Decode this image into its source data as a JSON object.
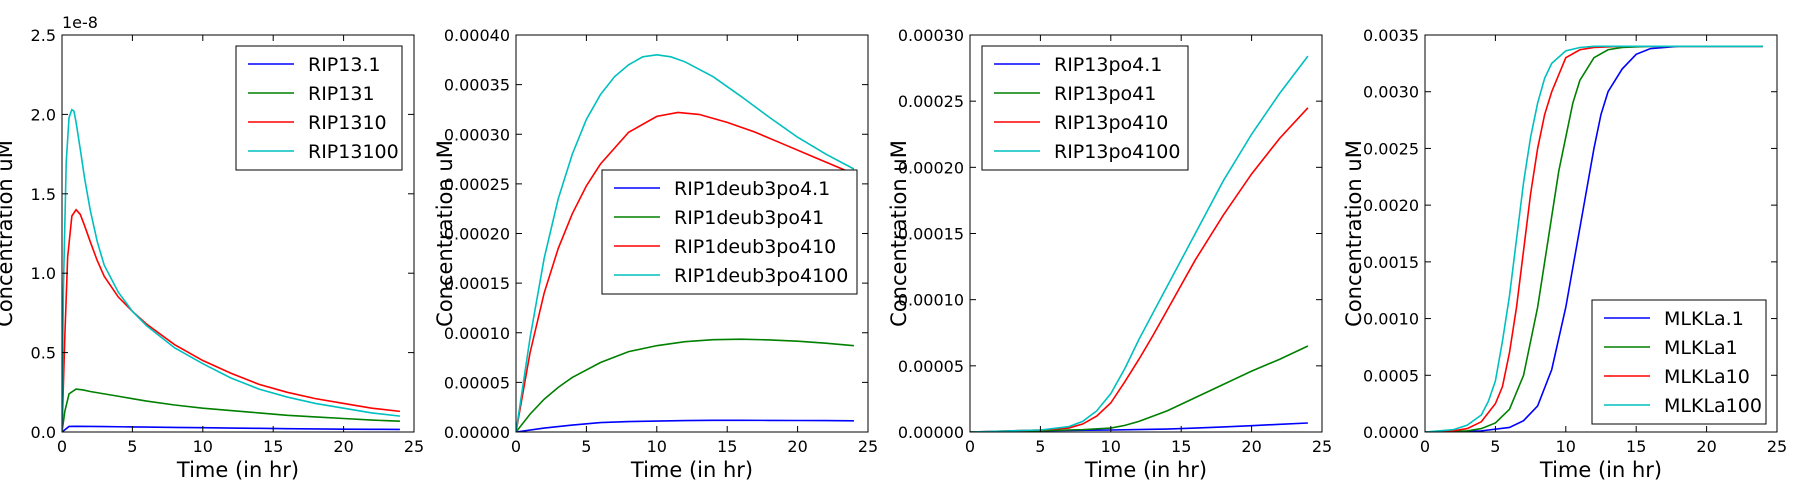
{
  "chart_data": [
    {
      "type": "line",
      "xlabel": "Time (in hr)",
      "ylabel": "Concentration uM",
      "xlim": [
        0,
        25
      ],
      "ylim": [
        0,
        2.5
      ],
      "xticks": [
        "0",
        "5",
        "10",
        "15",
        "20",
        "25"
      ],
      "yticks": [
        "0.0",
        "0.5",
        "1.0",
        "1.5",
        "2.0",
        "2.5"
      ],
      "y_offset_text": "1e-8",
      "legend_position": "upper right",
      "series": [
        {
          "name": "RIP13.1",
          "color": "#0000ff",
          "x": [
            0,
            0.5,
            1,
            2,
            3,
            4,
            5,
            6,
            8,
            10,
            12,
            14,
            16,
            18,
            20,
            22,
            24
          ],
          "y": [
            0,
            0.035,
            0.036,
            0.035,
            0.034,
            0.033,
            0.032,
            0.031,
            0.029,
            0.027,
            0.025,
            0.023,
            0.021,
            0.019,
            0.018,
            0.017,
            0.016
          ]
        },
        {
          "name": "RIP131",
          "color": "#008000",
          "x": [
            0,
            0.2,
            0.5,
            1,
            1.5,
            2,
            3,
            4,
            5,
            6,
            8,
            10,
            12,
            14,
            16,
            18,
            20,
            22,
            24
          ],
          "y": [
            0,
            0.13,
            0.24,
            0.27,
            0.265,
            0.255,
            0.24,
            0.225,
            0.21,
            0.195,
            0.17,
            0.15,
            0.135,
            0.12,
            0.105,
            0.095,
            0.085,
            0.075,
            0.068
          ]
        },
        {
          "name": "RIP1310",
          "color": "#ff0000",
          "x": [
            0,
            0.2,
            0.4,
            0.7,
            1,
            1.3,
            1.6,
            2,
            2.5,
            3,
            4,
            5,
            6,
            8,
            10,
            12,
            14,
            16,
            18,
            20,
            22,
            24
          ],
          "y": [
            0,
            0.6,
            1.1,
            1.36,
            1.4,
            1.37,
            1.3,
            1.2,
            1.08,
            0.98,
            0.85,
            0.76,
            0.68,
            0.55,
            0.45,
            0.37,
            0.3,
            0.25,
            0.21,
            0.18,
            0.15,
            0.13
          ]
        },
        {
          "name": "RIP13100",
          "color": "#00bfbf",
          "x": [
            0,
            0.1,
            0.3,
            0.5,
            0.7,
            0.85,
            1,
            1.3,
            1.6,
            2,
            2.5,
            3,
            4,
            5,
            6,
            8,
            10,
            12,
            14,
            16,
            18,
            20,
            22,
            24
          ],
          "y": [
            0,
            0.9,
            1.7,
            1.98,
            2.03,
            2.02,
            1.95,
            1.78,
            1.6,
            1.4,
            1.2,
            1.05,
            0.88,
            0.76,
            0.67,
            0.53,
            0.43,
            0.34,
            0.27,
            0.22,
            0.18,
            0.15,
            0.12,
            0.1
          ]
        }
      ]
    },
    {
      "type": "line",
      "xlabel": "Time (in hr)",
      "ylabel": "Concentration uM",
      "xlim": [
        0,
        25
      ],
      "ylim": [
        0,
        0.0004
      ],
      "xticks": [
        "0",
        "5",
        "10",
        "15",
        "20",
        "25"
      ],
      "yticks": [
        "0.00000",
        "0.00005",
        "0.00010",
        "0.00015",
        "0.00020",
        "0.00025",
        "0.00030",
        "0.00035",
        "0.00040"
      ],
      "legend_position": "center right",
      "series": [
        {
          "name": "RIP1deub3po4.1",
          "color": "#0000ff",
          "x": [
            0,
            2,
            4,
            6,
            8,
            10,
            12,
            14,
            16,
            18,
            20,
            22,
            24
          ],
          "y": [
            0,
            4e-06,
            7e-06,
            9.5e-06,
            1.05e-05,
            1.1e-05,
            1.15e-05,
            1.18e-05,
            1.18e-05,
            1.17e-05,
            1.16e-05,
            1.15e-05,
            1.13e-05
          ]
        },
        {
          "name": "RIP1deub3po41",
          "color": "#008000",
          "x": [
            0,
            1,
            2,
            3,
            4,
            6,
            8,
            10,
            12,
            14,
            16,
            18,
            20,
            22,
            24
          ],
          "y": [
            0,
            1.8e-05,
            3.3e-05,
            4.5e-05,
            5.5e-05,
            7e-05,
            8.1e-05,
            8.7e-05,
            9.1e-05,
            9.3e-05,
            9.35e-05,
            9.28e-05,
            9.15e-05,
            8.95e-05,
            8.7e-05
          ]
        },
        {
          "name": "RIP1deub3po410",
          "color": "#ff0000",
          "x": [
            0,
            1,
            2,
            3,
            4,
            5,
            6,
            8,
            10,
            11.5,
            13,
            15,
            17,
            19,
            21,
            23,
            24
          ],
          "y": [
            0,
            8e-05,
            0.00014,
            0.000185,
            0.00022,
            0.000248,
            0.00027,
            0.000302,
            0.000318,
            0.000322,
            0.00032,
            0.000312,
            0.000302,
            0.00029,
            0.000278,
            0.000266,
            0.00026
          ]
        },
        {
          "name": "RIP1deub3po4100",
          "color": "#00bfbf",
          "x": [
            0,
            1,
            2,
            3,
            4,
            5,
            6,
            7,
            8,
            9,
            10,
            11,
            12,
            14,
            16,
            18,
            20,
            22,
            24
          ],
          "y": [
            0,
            9.5e-05,
            0.000175,
            0.000235,
            0.00028,
            0.000315,
            0.00034,
            0.000358,
            0.00037,
            0.000378,
            0.00038,
            0.000378,
            0.000373,
            0.000358,
            0.000338,
            0.000317,
            0.000297,
            0.00028,
            0.000265
          ]
        }
      ]
    },
    {
      "type": "line",
      "xlabel": "Time (in hr)",
      "ylabel": "Concentration uM",
      "xlim": [
        0,
        25
      ],
      "ylim": [
        0,
        0.0003
      ],
      "xticks": [
        "0",
        "5",
        "10",
        "15",
        "20",
        "25"
      ],
      "yticks": [
        "0.00000",
        "0.00005",
        "0.00010",
        "0.00015",
        "0.00020",
        "0.00025",
        "0.00030"
      ],
      "legend_position": "upper left",
      "series": [
        {
          "name": "RIP13po4.1",
          "color": "#0000ff",
          "x": [
            0,
            5,
            10,
            14,
            16,
            18,
            20,
            22,
            24
          ],
          "y": [
            0,
            1e-06,
            1.5e-06,
            2.2e-06,
            3e-06,
            3.8e-06,
            4.8e-06,
            5.8e-06,
            6.8e-06
          ]
        },
        {
          "name": "RIP13po41",
          "color": "#008000",
          "x": [
            0,
            5,
            8,
            10,
            11,
            12,
            13,
            14,
            16,
            18,
            20,
            22,
            24
          ],
          "y": [
            0,
            1e-06,
            1.8e-06,
            3e-06,
            5e-06,
            8e-06,
            1.2e-05,
            1.6e-05,
            2.6e-05,
            3.6e-05,
            4.6e-05,
            5.5e-05,
            6.5e-05
          ]
        },
        {
          "name": "RIP13po410",
          "color": "#ff0000",
          "x": [
            0,
            5,
            7,
            8,
            9,
            10,
            11,
            12,
            13,
            14,
            16,
            18,
            20,
            22,
            24
          ],
          "y": [
            0,
            1.5e-06,
            3e-06,
            6e-06,
            1.2e-05,
            2.2e-05,
            3.8e-05,
            5.5e-05,
            7.3e-05,
            9.2e-05,
            0.00013,
            0.000164,
            0.000195,
            0.000222,
            0.000245
          ]
        },
        {
          "name": "RIP13po4100",
          "color": "#00bfbf",
          "x": [
            0,
            5,
            7,
            8,
            9,
            10,
            11,
            12,
            13,
            14,
            16,
            18,
            20,
            22,
            24
          ],
          "y": [
            0,
            1.5e-06,
            4e-06,
            8e-06,
            1.6e-05,
            2.9e-05,
            4.8e-05,
            7e-05,
            9e-05,
            0.00011,
            0.00015,
            0.00019,
            0.000225,
            0.000256,
            0.000284
          ]
        }
      ]
    },
    {
      "type": "line",
      "xlabel": "Time (in hr)",
      "ylabel": "Concentration uM",
      "xlim": [
        0,
        25
      ],
      "ylim": [
        0,
        0.0035
      ],
      "xticks": [
        "0",
        "5",
        "10",
        "15",
        "20",
        "25"
      ],
      "yticks": [
        "0.0000",
        "0.0005",
        "0.0010",
        "0.0015",
        "0.0020",
        "0.0025",
        "0.0030",
        "0.0035"
      ],
      "legend_position": "lower right",
      "series": [
        {
          "name": "MLKLa.1",
          "color": "#0000ff",
          "x": [
            0,
            4,
            6,
            7,
            8,
            9,
            10,
            10.5,
            11,
            11.5,
            12,
            12.5,
            13,
            14,
            15,
            16,
            18,
            20,
            24
          ],
          "y": [
            0,
            1e-05,
            4e-05,
            0.0001,
            0.00023,
            0.00055,
            0.0011,
            0.00145,
            0.0018,
            0.00215,
            0.0025,
            0.0028,
            0.003,
            0.0032,
            0.00333,
            0.00338,
            0.0034,
            0.0034,
            0.0034
          ]
        },
        {
          "name": "MLKLa1",
          "color": "#008000",
          "x": [
            0,
            3,
            4,
            5,
            6,
            7,
            8,
            8.5,
            9,
            9.5,
            10,
            10.5,
            11,
            12,
            13,
            14,
            16,
            20,
            24
          ],
          "y": [
            0,
            1e-05,
            3e-05,
            8e-05,
            0.0002,
            0.0005,
            0.0011,
            0.0015,
            0.0019,
            0.0023,
            0.0026,
            0.0029,
            0.0031,
            0.0033,
            0.00337,
            0.00339,
            0.0034,
            0.0034,
            0.0034
          ]
        },
        {
          "name": "MLKLa10",
          "color": "#ff0000",
          "x": [
            0,
            2,
            3,
            4,
            5,
            5.5,
            6,
            6.5,
            7,
            7.5,
            8,
            8.5,
            9,
            10,
            11,
            12,
            14,
            20,
            24
          ],
          "y": [
            0,
            1e-05,
            3e-05,
            9e-05,
            0.00025,
            0.0004,
            0.0007,
            0.0011,
            0.0016,
            0.0021,
            0.0025,
            0.0028,
            0.003,
            0.0033,
            0.00337,
            0.00339,
            0.0034,
            0.0034,
            0.0034
          ]
        },
        {
          "name": "MLKLa100",
          "color": "#00bfbf",
          "x": [
            0,
            2,
            3,
            4,
            4.5,
            5,
            5.5,
            6,
            6.5,
            7,
            7.5,
            8,
            8.5,
            9,
            10,
            11,
            12,
            14,
            20,
            24
          ],
          "y": [
            0,
            2e-05,
            6e-05,
            0.00015,
            0.00027,
            0.00045,
            0.0008,
            0.0012,
            0.0017,
            0.0022,
            0.0026,
            0.0029,
            0.00312,
            0.00325,
            0.00336,
            0.00339,
            0.0034,
            0.0034,
            0.0034,
            0.0034
          ]
        }
      ]
    }
  ]
}
